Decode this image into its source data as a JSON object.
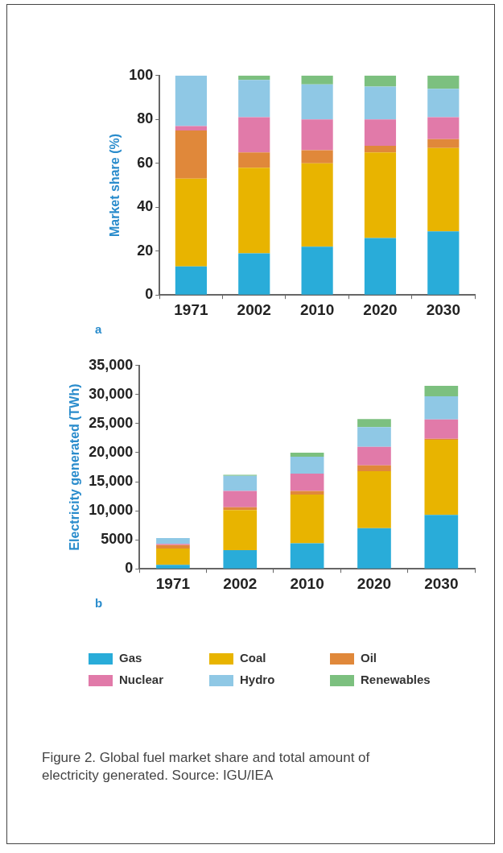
{
  "chart_data": [
    {
      "type": "bar",
      "stacked": true,
      "ylabel": "Market share (%)",
      "categories": [
        "1971",
        "2002",
        "2010",
        "2020",
        "2030"
      ],
      "ylim": [
        0,
        100
      ],
      "yticks": [
        0,
        20,
        40,
        60,
        80,
        100
      ],
      "grid": false,
      "legend": false,
      "annotations": [
        "a"
      ],
      "series": [
        {
          "color": "#29acd9",
          "values": [
            13,
            19,
            22,
            26,
            29
          ]
        },
        {
          "color": "#e8b400",
          "values": [
            40,
            39,
            38,
            39,
            38
          ]
        },
        {
          "color": "#e0883a",
          "values": [
            22,
            7,
            6,
            3,
            4
          ]
        },
        {
          "color": "#e17aa9",
          "values": [
            2,
            16,
            14,
            12,
            10
          ]
        },
        {
          "color": "#8fc8e5",
          "values": [
            23,
            17,
            16,
            15,
            13
          ]
        },
        {
          "color": "#7cc07f",
          "values": [
            0,
            2,
            4,
            5,
            6
          ]
        }
      ]
    },
    {
      "type": "bar",
      "stacked": true,
      "ylabel": "Electricity generated (TWh)",
      "categories": [
        "1971",
        "2002",
        "2010",
        "2020",
        "2030"
      ],
      "ylim": [
        0,
        35000
      ],
      "yticks": [
        0,
        5000,
        {
          "value": 10000,
          "label": "10,000"
        },
        {
          "value": 15000,
          "label": "15,000"
        },
        {
          "value": 20000,
          "label": "20,000"
        },
        {
          "value": 25000,
          "label": "25,000"
        },
        {
          "value": 30000,
          "label": "30,000"
        },
        {
          "value": 35000,
          "label": "35,000"
        }
      ],
      "grid": false,
      "legend": "bottom",
      "annotations": [
        "b",
        "Figure 2. Global fuel market share and total amount of electricity generated. Source: IGU/IEA"
      ],
      "series": [
        {
          "name": "Gas",
          "color": "#29acd9",
          "values": [
            700,
            3200,
            4400,
            7000,
            9300
          ]
        },
        {
          "name": "Coal",
          "color": "#e8b400",
          "values": [
            2800,
            6900,
            8400,
            9800,
            12900
          ]
        },
        {
          "name": "Oil",
          "color": "#e0883a",
          "values": [
            600,
            500,
            600,
            1000,
            200
          ]
        },
        {
          "name": "Nuclear",
          "color": "#e17aa9",
          "values": [
            200,
            2800,
            3000,
            3200,
            3300
          ]
        },
        {
          "name": "Hydro",
          "color": "#8fc8e5",
          "values": [
            1000,
            2600,
            2900,
            3400,
            4000
          ]
        },
        {
          "name": "Renewables",
          "color": "#7cc07f",
          "values": [
            0,
            200,
            700,
            1400,
            1800
          ]
        }
      ]
    }
  ]
}
